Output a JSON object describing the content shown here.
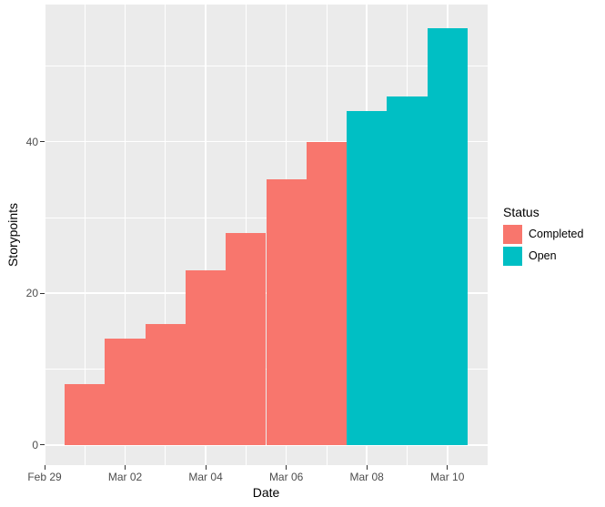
{
  "chart_data": {
    "type": "bar",
    "title": "",
    "xlabel": "Date",
    "ylabel": "Storypoints",
    "categories": [
      "Mar 01",
      "Mar 02",
      "Mar 03",
      "Mar 04",
      "Mar 05",
      "Mar 06",
      "Mar 07",
      "Mar 08",
      "Mar 09",
      "Mar 10"
    ],
    "series": [
      {
        "name": "Completed",
        "color": "#F8766D",
        "values": [
          8,
          14,
          16,
          23,
          28,
          35,
          40,
          null,
          null,
          null
        ]
      },
      {
        "name": "Open",
        "color": "#00BFC4",
        "values": [
          null,
          null,
          null,
          null,
          null,
          null,
          null,
          44,
          46,
          55
        ]
      }
    ],
    "x_axis": {
      "tick_labels": [
        "Feb 29",
        "Mar 02",
        "Mar 04",
        "Mar 06",
        "Mar 08",
        "Mar 10"
      ],
      "tick_day_positions": [
        0,
        2,
        4,
        6,
        8,
        10
      ],
      "minor_day_positions": [
        1,
        3,
        5,
        7,
        9
      ],
      "domain_days": [
        0,
        11
      ]
    },
    "y_axis": {
      "tick_labels": [
        "0",
        "20",
        "40"
      ],
      "tick_values": [
        0,
        20,
        40
      ],
      "minor_values": [
        10,
        30,
        50
      ],
      "ylim": [
        -2.64,
        58.06
      ]
    },
    "legend": {
      "title": "Status",
      "position": "right",
      "entries": [
        {
          "label": "Completed",
          "color": "#F8766D"
        },
        {
          "label": "Open",
          "color": "#00BFC4"
        }
      ]
    },
    "grid": true,
    "style": {
      "panel_bg": "#EBEBEB",
      "grid_color": "#FFFFFF",
      "axis_text_color": "#4D4D4D",
      "axis_title_color": "#000000",
      "tick_color": "#333333",
      "background": "#FFFFFF"
    }
  }
}
